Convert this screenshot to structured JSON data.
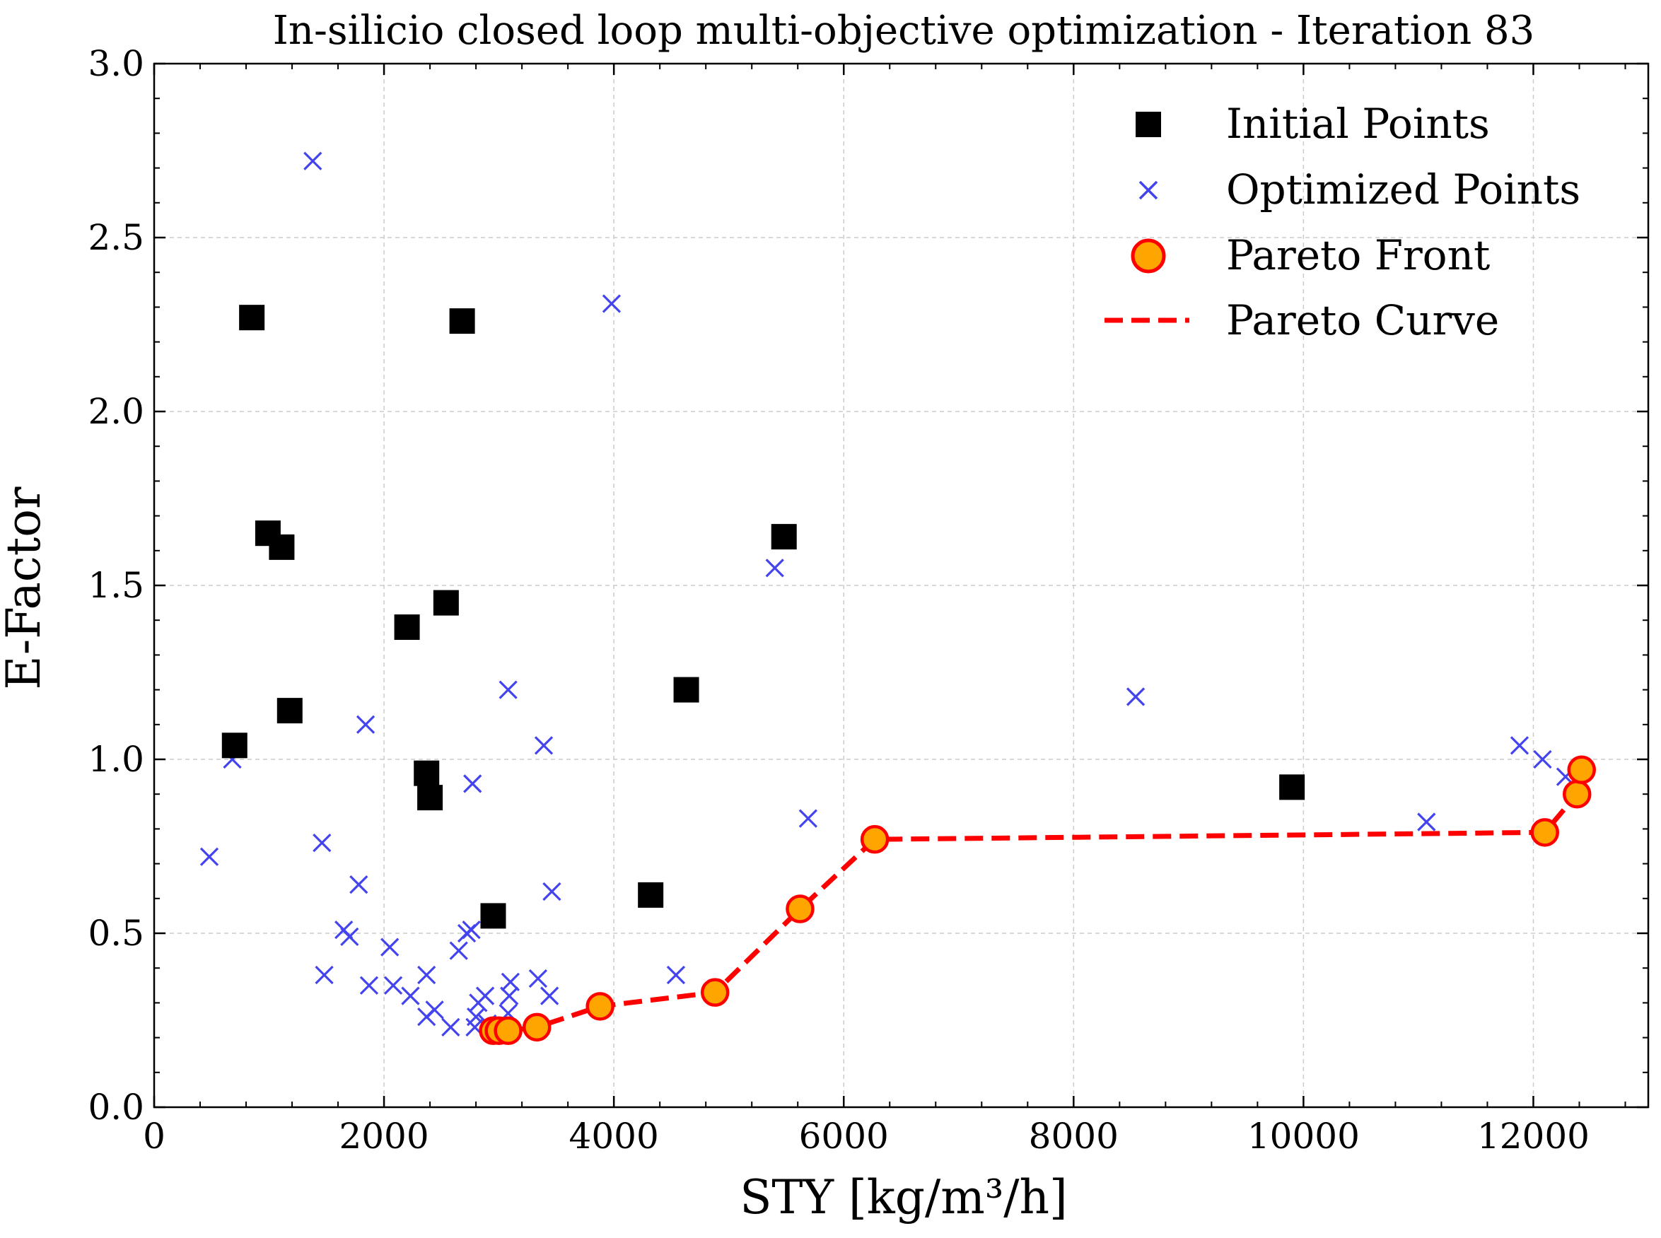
{
  "chart_data": {
    "type": "scatter",
    "title": "In-silicio closed loop multi-objective optimization - Iteration 83",
    "xlabel": "STY [kg/m³/h]",
    "ylabel": "E-Factor",
    "xlim": [
      0,
      13000
    ],
    "ylim": [
      0,
      3.0
    ],
    "x_ticks": [
      0,
      2000,
      4000,
      6000,
      8000,
      10000,
      12000
    ],
    "x_tick_labels": [
      "0",
      "2000",
      "4000",
      "6000",
      "8000",
      "10000",
      "12000"
    ],
    "y_ticks": [
      0,
      0.5,
      1.0,
      1.5,
      2.0,
      2.5,
      3.0
    ],
    "y_tick_labels": [
      "0.0",
      "0.5",
      "1.0",
      "1.5",
      "2.0",
      "2.5",
      "3.0"
    ],
    "grid": true,
    "legend_position": "top-right",
    "series": [
      {
        "name": "Initial Points",
        "marker": "square",
        "color": "#000000",
        "points": [
          [
            850,
            2.27
          ],
          [
            2680,
            2.26
          ],
          [
            990,
            1.65
          ],
          [
            1110,
            1.61
          ],
          [
            5480,
            1.64
          ],
          [
            2200,
            1.38
          ],
          [
            2540,
            1.45
          ],
          [
            4630,
            1.2
          ],
          [
            1180,
            1.14
          ],
          [
            700,
            1.04
          ],
          [
            2370,
            0.96
          ],
          [
            2400,
            0.89
          ],
          [
            9900,
            0.92
          ],
          [
            4320,
            0.61
          ],
          [
            2950,
            0.55
          ]
        ]
      },
      {
        "name": "Optimized Points",
        "marker": "x",
        "color": "#4444ee",
        "points": [
          [
            1380,
            2.72
          ],
          [
            3980,
            2.31
          ],
          [
            5400,
            1.55
          ],
          [
            3080,
            1.2
          ],
          [
            8540,
            1.18
          ],
          [
            1840,
            1.1
          ],
          [
            3390,
            1.04
          ],
          [
            11880,
            1.04
          ],
          [
            12080,
            1.0
          ],
          [
            12280,
            0.95
          ],
          [
            680,
            1.0
          ],
          [
            2770,
            0.93
          ],
          [
            5690,
            0.83
          ],
          [
            11070,
            0.82
          ],
          [
            1460,
            0.76
          ],
          [
            480,
            0.72
          ],
          [
            1780,
            0.64
          ],
          [
            3460,
            0.62
          ],
          [
            1650,
            0.51
          ],
          [
            1700,
            0.49
          ],
          [
            2760,
            0.51
          ],
          [
            2720,
            0.5
          ],
          [
            2050,
            0.46
          ],
          [
            2650,
            0.45
          ],
          [
            1480,
            0.38
          ],
          [
            4540,
            0.38
          ],
          [
            2370,
            0.38
          ],
          [
            3340,
            0.37
          ],
          [
            3100,
            0.36
          ],
          [
            1870,
            0.35
          ],
          [
            2080,
            0.35
          ],
          [
            2230,
            0.32
          ],
          [
            3090,
            0.32
          ],
          [
            3440,
            0.32
          ],
          [
            2880,
            0.32
          ],
          [
            2820,
            0.3
          ],
          [
            2440,
            0.28
          ],
          [
            2370,
            0.26
          ],
          [
            2580,
            0.23
          ],
          [
            2800,
            0.26
          ],
          [
            2790,
            0.23
          ],
          [
            3080,
            0.27
          ],
          [
            2900,
            0.24
          ]
        ]
      },
      {
        "name": "Pareto Front",
        "marker": "circle",
        "color": "#ffa500",
        "edge_color": "#ff0000",
        "points": [
          [
            2950,
            0.22
          ],
          [
            3000,
            0.22
          ],
          [
            3080,
            0.22
          ],
          [
            3330,
            0.23
          ],
          [
            3880,
            0.29
          ],
          [
            4880,
            0.33
          ],
          [
            5620,
            0.57
          ],
          [
            6270,
            0.77
          ],
          [
            12100,
            0.79
          ],
          [
            12380,
            0.9
          ],
          [
            12420,
            0.97
          ]
        ]
      },
      {
        "name": "Pareto Curve",
        "style": "dashed-line",
        "color": "#ff0000",
        "points": [
          [
            2950,
            0.22
          ],
          [
            3000,
            0.22
          ],
          [
            3080,
            0.22
          ],
          [
            3330,
            0.23
          ],
          [
            3880,
            0.29
          ],
          [
            4880,
            0.33
          ],
          [
            5620,
            0.57
          ],
          [
            6270,
            0.77
          ],
          [
            12100,
            0.79
          ],
          [
            12380,
            0.9
          ],
          [
            12420,
            0.97
          ]
        ]
      }
    ]
  }
}
